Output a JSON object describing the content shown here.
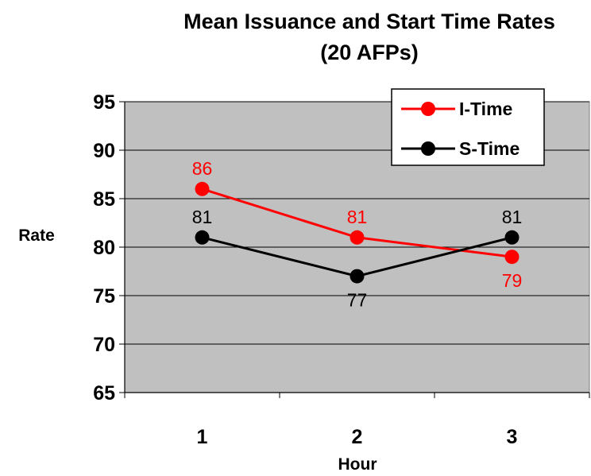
{
  "chart_data": {
    "type": "line",
    "title": "Mean Issuance and Start Time Rates",
    "subtitle": "(20 AFPs)",
    "xlabel": "Hour",
    "ylabel": "Rate",
    "categories": [
      "1",
      "2",
      "3"
    ],
    "ylim": [
      65,
      95
    ],
    "yticks": [
      65,
      70,
      75,
      80,
      85,
      90,
      95
    ],
    "grid": true,
    "legend": "top-right",
    "plot_background": "#C0C0C0",
    "series": [
      {
        "name": "I-Time",
        "color": "#FF0000",
        "values": [
          86,
          81,
          79
        ],
        "labels": [
          "86",
          "81",
          "79"
        ],
        "label_pos": [
          "above",
          "above",
          "below"
        ]
      },
      {
        "name": "S-Time",
        "color": "#000000",
        "values": [
          81,
          77,
          81
        ],
        "labels": [
          "81",
          "77",
          "81"
        ],
        "label_pos": [
          "above",
          "below",
          "above"
        ]
      }
    ]
  }
}
